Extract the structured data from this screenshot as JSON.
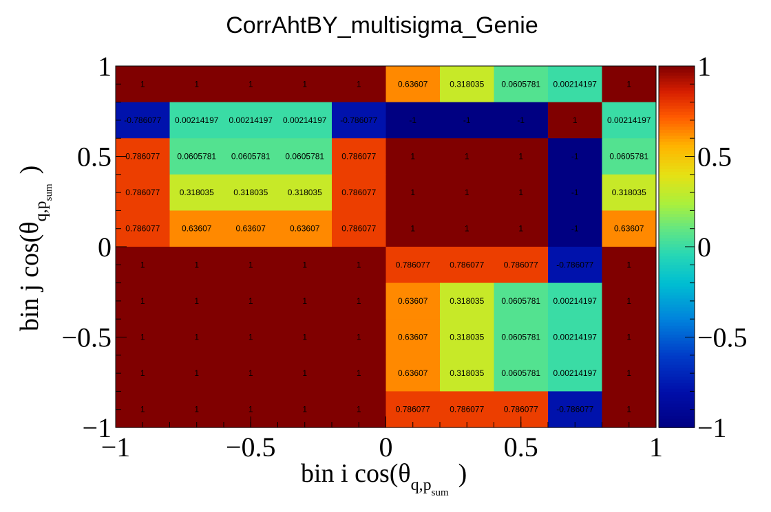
{
  "chart_data": {
    "type": "heatmap",
    "title": "CorrAhtBY_multisigma_Genie",
    "xlabel": {
      "prefix": "bin i cos(θ",
      "sub": "q,p",
      "subsub": "sum",
      "suffix": ")"
    },
    "ylabel": {
      "prefix": "bin j cos(θ",
      "sub": "q,p",
      "subsub": "sum",
      "suffix": ")"
    },
    "xlim": [
      -1,
      1
    ],
    "ylim": [
      -1,
      1
    ],
    "x_edges": [
      -1,
      -0.8,
      -0.6,
      -0.4,
      -0.2,
      0,
      0.2,
      0.4,
      0.6,
      0.8,
      1
    ],
    "y_edges": [
      -1,
      -0.8,
      -0.6,
      -0.4,
      -0.2,
      0,
      0.2,
      0.4,
      0.6,
      0.8,
      1
    ],
    "x_ticks": [
      {
        "value": -1,
        "label": "−1"
      },
      {
        "value": -0.5,
        "label": "−0.5"
      },
      {
        "value": 0,
        "label": "0"
      },
      {
        "value": 0.5,
        "label": "0.5"
      },
      {
        "value": 1,
        "label": "1"
      }
    ],
    "y_ticks": [
      {
        "value": -1,
        "label": "−1"
      },
      {
        "value": -0.5,
        "label": "−0.5"
      },
      {
        "value": 0,
        "label": "0"
      },
      {
        "value": 0.5,
        "label": "0.5"
      },
      {
        "value": 1,
        "label": "1"
      }
    ],
    "colorbar": {
      "range": [
        -1,
        1
      ],
      "ticks": [
        {
          "value": 1,
          "label": "1"
        },
        {
          "value": 0.5,
          "label": "0.5"
        },
        {
          "value": 0,
          "label": "0"
        },
        {
          "value": -0.5,
          "label": "−0.5"
        },
        {
          "value": -1,
          "label": "−1"
        }
      ],
      "colormap": "rainbow"
    },
    "rows_top_to_bottom": [
      [
        1,
        1,
        1,
        1,
        1,
        0.63607,
        0.318035,
        0.0605781,
        0.00214197,
        1
      ],
      [
        -0.786077,
        0.00214197,
        0.00214197,
        0.00214197,
        -0.786077,
        -1,
        -1,
        -1,
        1,
        0.00214197
      ],
      [
        0.786077,
        0.0605781,
        0.0605781,
        0.0605781,
        0.786077,
        1,
        1,
        1,
        -1,
        0.0605781
      ],
      [
        0.786077,
        0.318035,
        0.318035,
        0.318035,
        0.786077,
        1,
        1,
        1,
        -1,
        0.318035
      ],
      [
        0.786077,
        0.63607,
        0.63607,
        0.63607,
        0.786077,
        1,
        1,
        1,
        -1,
        0.63607
      ],
      [
        1,
        1,
        1,
        1,
        1,
        0.786077,
        0.786077,
        0.786077,
        -0.786077,
        1
      ],
      [
        1,
        1,
        1,
        1,
        1,
        0.63607,
        0.318035,
        0.0605781,
        0.00214197,
        1
      ],
      [
        1,
        1,
        1,
        1,
        1,
        0.63607,
        0.318035,
        0.0605781,
        0.00214197,
        1
      ],
      [
        1,
        1,
        1,
        1,
        1,
        0.63607,
        0.318035,
        0.0605781,
        0.00214197,
        1
      ],
      [
        1,
        1,
        1,
        1,
        1,
        0.786077,
        0.786077,
        0.786077,
        -0.786077,
        1
      ]
    ]
  }
}
